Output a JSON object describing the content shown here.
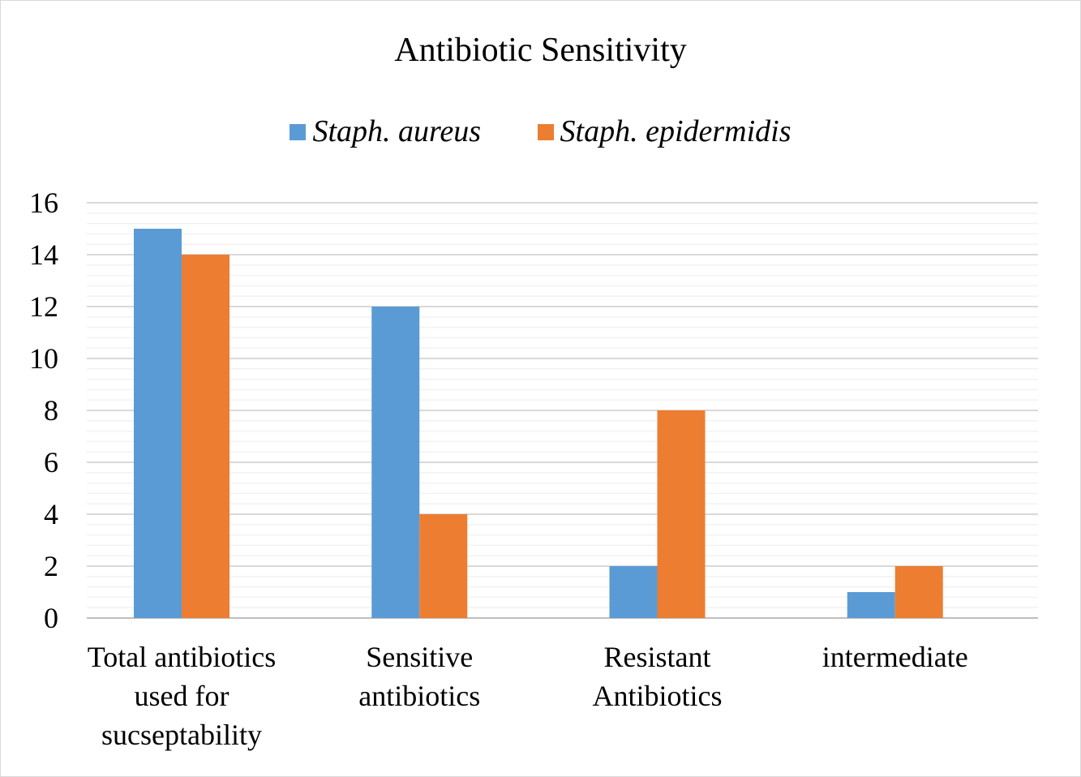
{
  "chart_data": {
    "type": "bar",
    "title": "Antibiotic Sensitivity",
    "categories": [
      [
        "Total antibiotics",
        "used for",
        "sucseptability"
      ],
      [
        "Sensitive",
        "antibiotics"
      ],
      [
        "Resistant",
        "Antibiotics"
      ],
      [
        "intermediate"
      ]
    ],
    "series": [
      {
        "name": "Staph. aureus",
        "color": "#5b9bd5",
        "values": [
          15,
          12,
          2,
          1
        ]
      },
      {
        "name": "Staph. epidermidis",
        "color": "#ed7d31",
        "values": [
          14,
          4,
          8,
          2
        ]
      }
    ],
    "ylim": [
      0,
      16
    ],
    "yticks": [
      "0",
      "2",
      "4",
      "6",
      "8",
      "10",
      "12",
      "14",
      "16"
    ],
    "grid": true,
    "minor_grid": true,
    "legend": "top"
  }
}
